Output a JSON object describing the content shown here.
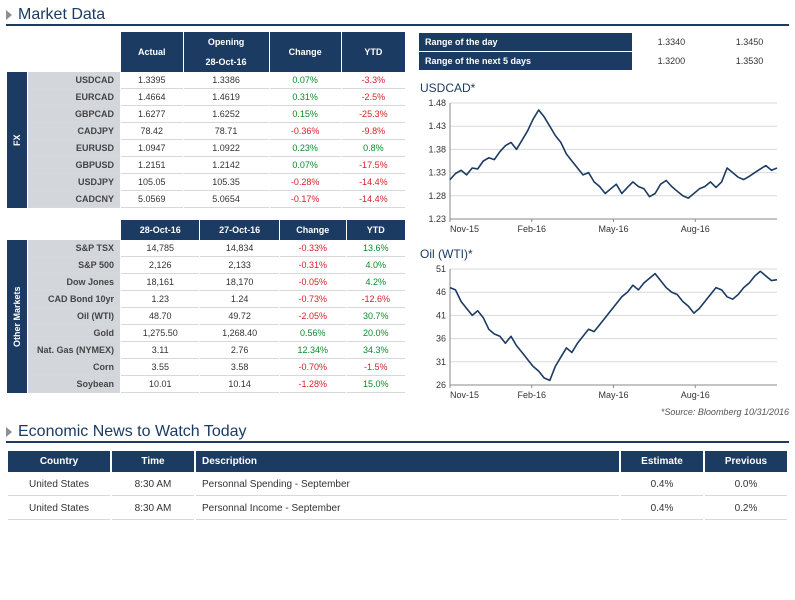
{
  "titles": {
    "market_data": "Market Data",
    "economic_news": "Economic News to Watch Today"
  },
  "colors": {
    "primary": "#1b3b63",
    "grid": "#d9d9d9",
    "axis": "#888",
    "positive": "#0a8a28",
    "negative": "#d2232a",
    "row_label_bg": "#d3d6db"
  },
  "range_table": {
    "rows": [
      {
        "label": "Range of the day",
        "low": "1.3340",
        "high": "1.3450"
      },
      {
        "label": "Range of the next 5 days",
        "low": "1.3200",
        "high": "1.3530"
      }
    ]
  },
  "fx_table": {
    "vertical_label": "FX",
    "headers": {
      "h1": "Actual",
      "h2a": "Opening",
      "h2b": "28-Oct-16",
      "h3": "Change",
      "h4": "YTD"
    },
    "rows": [
      {
        "name": "USDCAD",
        "actual": "1.3395",
        "open": "1.3386",
        "chg": "0.07%",
        "chg_sign": 1,
        "ytd": "-3.3%",
        "ytd_sign": -1
      },
      {
        "name": "EURCAD",
        "actual": "1.4664",
        "open": "1.4619",
        "chg": "0.31%",
        "chg_sign": 1,
        "ytd": "-2.5%",
        "ytd_sign": -1
      },
      {
        "name": "GBPCAD",
        "actual": "1.6277",
        "open": "1.6252",
        "chg": "0.15%",
        "chg_sign": 1,
        "ytd": "-25.3%",
        "ytd_sign": -1
      },
      {
        "name": "CADJPY",
        "actual": "78.42",
        "open": "78.71",
        "chg": "-0.36%",
        "chg_sign": -1,
        "ytd": "-9.8%",
        "ytd_sign": -1
      },
      {
        "name": "EURUSD",
        "actual": "1.0947",
        "open": "1.0922",
        "chg": "0.23%",
        "chg_sign": 1,
        "ytd": "0.8%",
        "ytd_sign": 1
      },
      {
        "name": "GBPUSD",
        "actual": "1.2151",
        "open": "1.2142",
        "chg": "0.07%",
        "chg_sign": 1,
        "ytd": "-17.5%",
        "ytd_sign": -1
      },
      {
        "name": "USDJPY",
        "actual": "105.05",
        "open": "105.35",
        "chg": "-0.28%",
        "chg_sign": -1,
        "ytd": "-14.4%",
        "ytd_sign": -1
      },
      {
        "name": "CADCNY",
        "actual": "5.0569",
        "open": "5.0654",
        "chg": "-0.17%",
        "chg_sign": -1,
        "ytd": "-14.4%",
        "ytd_sign": -1
      }
    ]
  },
  "other_table": {
    "vertical_label": "Other Markets",
    "headers": {
      "h1": "28-Oct-16",
      "h2": "27-Oct-16",
      "h3": "Change",
      "h4": "YTD"
    },
    "rows": [
      {
        "name": "S&P TSX",
        "v1": "14,785",
        "v2": "14,834",
        "chg": "-0.33%",
        "chg_sign": -1,
        "ytd": "13.6%",
        "ytd_sign": 1
      },
      {
        "name": "S&P 500",
        "v1": "2,126",
        "v2": "2,133",
        "chg": "-0.31%",
        "chg_sign": -1,
        "ytd": "4.0%",
        "ytd_sign": 1
      },
      {
        "name": "Dow Jones",
        "v1": "18,161",
        "v2": "18,170",
        "chg": "-0.05%",
        "chg_sign": -1,
        "ytd": "4.2%",
        "ytd_sign": 1
      },
      {
        "name": "CAD Bond 10yr",
        "v1": "1.23",
        "v2": "1.24",
        "chg": "-0.73%",
        "chg_sign": -1,
        "ytd": "-12.6%",
        "ytd_sign": -1
      },
      {
        "name": "Oil (WTI)",
        "v1": "48.70",
        "v2": "49.72",
        "chg": "-2.05%",
        "chg_sign": -1,
        "ytd": "30.7%",
        "ytd_sign": 1
      },
      {
        "name": "Gold",
        "v1": "1,275.50",
        "v2": "1,268.40",
        "chg": "0.56%",
        "chg_sign": 1,
        "ytd": "20.0%",
        "ytd_sign": 1
      },
      {
        "name": "Nat. Gas (NYMEX)",
        "v1": "3.11",
        "v2": "2.76",
        "chg": "12.34%",
        "chg_sign": 1,
        "ytd": "34.3%",
        "ytd_sign": 1
      },
      {
        "name": "Corn",
        "v1": "3.55",
        "v2": "3.58",
        "chg": "-0.70%",
        "chg_sign": -1,
        "ytd": "-1.5%",
        "ytd_sign": -1
      },
      {
        "name": "Soybean",
        "v1": "10.01",
        "v2": "10.14",
        "chg": "-1.28%",
        "chg_sign": -1,
        "ytd": "15.0%",
        "ytd_sign": 1
      }
    ]
  },
  "charts": {
    "source_note": "*Source: Bloomberg  10/31/2016",
    "usd_cad": {
      "title": "USDCAD*",
      "y_min": 1.23,
      "y_max": 1.48,
      "y_step": 0.05,
      "x_labels": [
        "Nov-15",
        "Feb-16",
        "May-16",
        "Aug-16"
      ],
      "line_color": "#1b3b63",
      "series": [
        1.315,
        1.328,
        1.335,
        1.325,
        1.34,
        1.338,
        1.355,
        1.362,
        1.358,
        1.375,
        1.388,
        1.395,
        1.38,
        1.4,
        1.42,
        1.445,
        1.465,
        1.45,
        1.43,
        1.41,
        1.395,
        1.37,
        1.355,
        1.34,
        1.325,
        1.33,
        1.31,
        1.3,
        1.285,
        1.295,
        1.305,
        1.285,
        1.298,
        1.31,
        1.3,
        1.295,
        1.278,
        1.285,
        1.305,
        1.313,
        1.3,
        1.29,
        1.28,
        1.275,
        1.285,
        1.295,
        1.3,
        1.31,
        1.298,
        1.31,
        1.34,
        1.33,
        1.32,
        1.315,
        1.322,
        1.33,
        1.338,
        1.345,
        1.335,
        1.34
      ]
    },
    "oil": {
      "title": "Oil (WTI)*",
      "y_min": 26,
      "y_max": 51,
      "y_step": 5,
      "x_labels": [
        "Nov-15",
        "Feb-16",
        "May-16",
        "Aug-16"
      ],
      "line_color": "#1b3b63",
      "series": [
        47,
        46.5,
        44,
        42.5,
        41,
        42,
        40.5,
        38,
        37,
        36.5,
        35,
        36.5,
        34.5,
        33,
        31.5,
        30,
        29,
        27.5,
        27,
        30,
        32,
        34,
        33,
        35,
        36.5,
        38,
        37.5,
        39,
        40.5,
        42,
        43.5,
        45,
        46,
        47.5,
        46.5,
        48,
        49,
        50,
        48.5,
        47,
        46,
        45.5,
        44,
        43,
        41.5,
        42.5,
        44,
        45.5,
        47,
        46.5,
        45,
        44.5,
        45.5,
        47,
        48,
        49.5,
        50.5,
        49.5,
        48.5,
        48.7
      ]
    }
  },
  "news": {
    "headers": {
      "country": "Country",
      "time": "Time",
      "desc": "Description",
      "est": "Estimate",
      "prev": "Previous"
    },
    "rows": [
      {
        "country": "United States",
        "time": "8:30 AM",
        "desc": "Personnal Spending - September",
        "est": "0.4%",
        "prev": "0.0%"
      },
      {
        "country": "United States",
        "time": "8:30 AM",
        "desc": "Personnal Income - September",
        "est": "0.4%",
        "prev": "0.2%"
      }
    ]
  }
}
